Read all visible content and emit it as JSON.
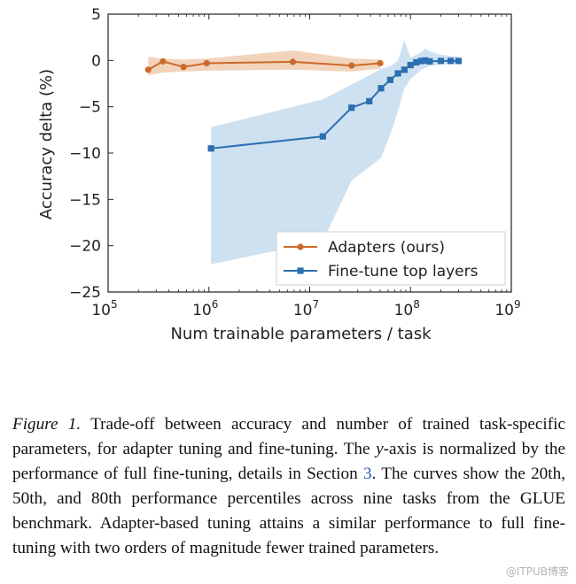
{
  "chart_data": {
    "type": "line",
    "xlabel": "Num trainable parameters / task",
    "ylabel": "Accuracy delta (%)",
    "xscale": "log",
    "xlim": [
      100000,
      1000000000
    ],
    "ylim": [
      -25,
      5
    ],
    "x_ticks": [
      {
        "value": 100000,
        "base": "10",
        "exp": "5"
      },
      {
        "value": 1000000,
        "base": "10",
        "exp": "6"
      },
      {
        "value": 10000000,
        "base": "10",
        "exp": "7"
      },
      {
        "value": 100000000,
        "base": "10",
        "exp": "8"
      },
      {
        "value": 1000000000,
        "base": "10",
        "exp": "9"
      }
    ],
    "y_ticks": [
      {
        "value": 5,
        "label": "5"
      },
      {
        "value": 0,
        "label": "0"
      },
      {
        "value": -5,
        "label": "−5"
      },
      {
        "value": -10,
        "label": "−10"
      },
      {
        "value": -15,
        "label": "−15"
      },
      {
        "value": -20,
        "label": "−20"
      },
      {
        "value": -25,
        "label": "−25"
      }
    ],
    "legend_position": "lower-right",
    "series": [
      {
        "name": "Adapters (ours)",
        "color": "#cc6a2c",
        "band_color": "#f0ccb0",
        "marker": "circle",
        "x": [
          250000,
          350000,
          560000,
          950000,
          6800000,
          26000000,
          50000000
        ],
        "y": [
          -1.0,
          -0.1,
          -0.7,
          -0.3,
          -0.15,
          -0.55,
          -0.3
        ],
        "lower": [
          -1.6,
          -1.3,
          -1.2,
          -1.1,
          -1.0,
          -1.2,
          -0.9
        ],
        "upper": [
          0.4,
          0.2,
          0.1,
          0.2,
          1.1,
          0.2,
          0.1
        ]
      },
      {
        "name": "Fine-tune top layers",
        "color": "#2c6fb0",
        "band_color": "#c5dcee",
        "marker": "square",
        "x": [
          1050000,
          13500000,
          26000000,
          39000000,
          51000000,
          63000000,
          75000000,
          87000000,
          100000000,
          114000000,
          128000000,
          140000000,
          155000000,
          200000000,
          250000000,
          300000000
        ],
        "y": [
          -9.5,
          -8.2,
          -5.1,
          -4.4,
          -3.0,
          -2.1,
          -1.4,
          -1.0,
          -0.5,
          -0.2,
          -0.05,
          0.0,
          -0.1,
          -0.05,
          -0.05,
          -0.05
        ],
        "lower": [
          -22.0,
          -19.5,
          -13.0,
          -11.5,
          -10.5,
          -8.0,
          -5.5,
          -3.0,
          -2.0,
          -1.5,
          -1.0,
          -0.8,
          -0.6,
          -0.4,
          -0.4,
          -0.4
        ],
        "upper": [
          -7.2,
          -4.2,
          -2.6,
          -1.6,
          -0.9,
          -0.6,
          0.0,
          2.2,
          0.3,
          0.6,
          0.9,
          1.3,
          1.0,
          0.6,
          0.5,
          0.4
        ]
      }
    ]
  },
  "caption": {
    "label": "Figure 1.",
    "text_before_ref": " Trade-off between accuracy and number of trained task-specific parameters, for adapter tuning and fine-tuning. The ",
    "y_axis_word": "y",
    "text_middle": "-axis is normalized by the performance of full fine-tuning, details in Section ",
    "section_ref": "3",
    "text_after_ref": ". The curves show the 20th, 50th, and 80th performance percentiles across nine tasks from the GLUE benchmark. Adapter-based tuning attains a similar performance to full fine-tuning with two orders of magnitude fewer trained parameters."
  },
  "watermark": "@ITPUB博客"
}
